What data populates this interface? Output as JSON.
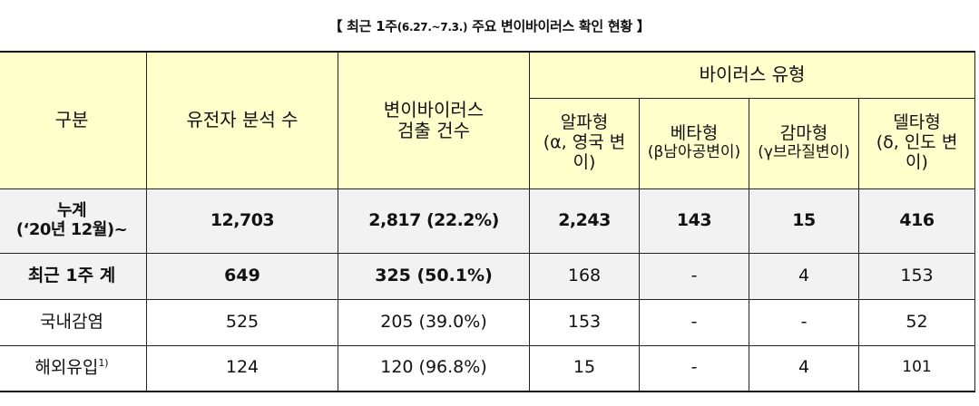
{
  "caption": {
    "open": "【 최근 1주",
    "period": "(6.27.~7.3.)",
    "close": " 주요 변이바이러스 확인 현황 】"
  },
  "header": {
    "category": "구분",
    "genome_count": "유전자 분석 수",
    "variant_detect_l1": "변이바이러스",
    "variant_detect_l2": "검출 건수",
    "virus_type": "바이러스 유형",
    "alpha_l1": "알파형",
    "alpha_l2": "(α, 영국 변",
    "alpha_l3": "이)",
    "beta_l1": "베타형",
    "beta_l2": "(β남아공변이)",
    "gamma_l1": "감마형",
    "gamma_l2": "(γ브라질변이)",
    "delta_l1": "델타형",
    "delta_l2": "(δ, 인도 변",
    "delta_l3": "이)"
  },
  "rows": {
    "cumulative": {
      "label_l1": "누계",
      "label_l2": "(‘20년 12월)~",
      "genome": "12,703",
      "variant": "2,817 (22.2%)",
      "alpha": "2,243",
      "beta": "143",
      "gamma": "15",
      "delta": "416"
    },
    "recent_week": {
      "label": "최근 1주 계",
      "genome": "649",
      "variant": "325 (50.1%)",
      "alpha": "168",
      "beta": "-",
      "gamma": "4",
      "delta": "153"
    },
    "domestic": {
      "label": "국내감염",
      "genome": "525",
      "variant": "205 (39.0%)",
      "alpha": "153",
      "beta": "-",
      "gamma": "-",
      "delta": "52"
    },
    "imported": {
      "label": "해외유입",
      "footnote": "1)",
      "genome": "124",
      "variant": "120 (96.8%)",
      "alpha": "15",
      "beta": "-",
      "gamma": "4",
      "delta": "101"
    }
  },
  "colors": {
    "header_bg": "#ffffcc",
    "total_bg": "#f2f2f2",
    "border": "#222222"
  }
}
